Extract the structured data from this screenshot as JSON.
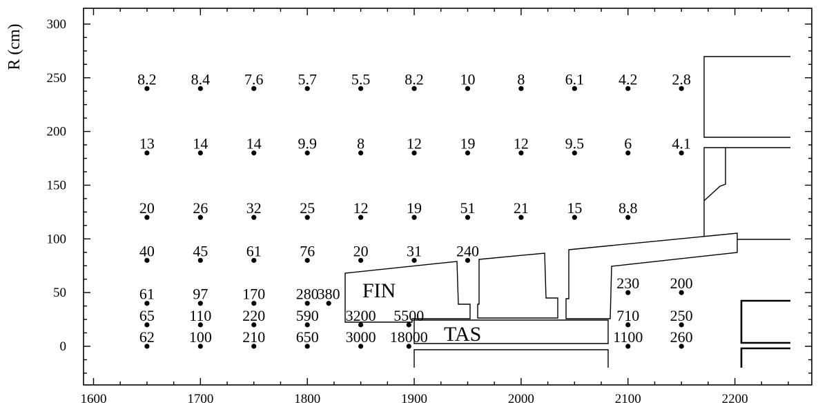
{
  "chart_data": {
    "type": "scatter",
    "title": "",
    "xlabel": "",
    "ylabel": "R (cm)",
    "xlim": [
      1590,
      2275
    ],
    "ylim": [
      -35,
      315
    ],
    "x_ticks": [
      1600,
      1700,
      1800,
      1900,
      2000,
      2100,
      2200
    ],
    "y_ticks": [
      0,
      50,
      100,
      150,
      200,
      250,
      300
    ],
    "x_tick_labels": [
      "1600",
      "1700",
      "1800",
      "1900",
      "2000",
      "2100",
      "2200"
    ],
    "y_tick_labels": [
      "0",
      "50",
      "100",
      "150",
      "200",
      "250",
      "300"
    ],
    "grid": false,
    "points": [
      {
        "x": 1650,
        "y": 240,
        "label": "8.2"
      },
      {
        "x": 1700,
        "y": 240,
        "label": "8.4"
      },
      {
        "x": 1750,
        "y": 240,
        "label": "7.6"
      },
      {
        "x": 1800,
        "y": 240,
        "label": "5.7"
      },
      {
        "x": 1850,
        "y": 240,
        "label": "5.5"
      },
      {
        "x": 1900,
        "y": 240,
        "label": "8.2"
      },
      {
        "x": 1950,
        "y": 240,
        "label": "10"
      },
      {
        "x": 2000,
        "y": 240,
        "label": "8"
      },
      {
        "x": 2050,
        "y": 240,
        "label": "6.1"
      },
      {
        "x": 2100,
        "y": 240,
        "label": "4.2"
      },
      {
        "x": 2150,
        "y": 240,
        "label": "2.8"
      },
      {
        "x": 1650,
        "y": 180,
        "label": "13"
      },
      {
        "x": 1700,
        "y": 180,
        "label": "14"
      },
      {
        "x": 1750,
        "y": 180,
        "label": "14"
      },
      {
        "x": 1800,
        "y": 180,
        "label": "9.9"
      },
      {
        "x": 1850,
        "y": 180,
        "label": "8"
      },
      {
        "x": 1900,
        "y": 180,
        "label": "12"
      },
      {
        "x": 1950,
        "y": 180,
        "label": "19"
      },
      {
        "x": 2000,
        "y": 180,
        "label": "12"
      },
      {
        "x": 2050,
        "y": 180,
        "label": "9.5"
      },
      {
        "x": 2100,
        "y": 180,
        "label": "6"
      },
      {
        "x": 2150,
        "y": 180,
        "label": "4.1"
      },
      {
        "x": 1650,
        "y": 120,
        "label": "20"
      },
      {
        "x": 1700,
        "y": 120,
        "label": "26"
      },
      {
        "x": 1750,
        "y": 120,
        "label": "32"
      },
      {
        "x": 1800,
        "y": 120,
        "label": "25"
      },
      {
        "x": 1850,
        "y": 120,
        "label": "12"
      },
      {
        "x": 1900,
        "y": 120,
        "label": "19"
      },
      {
        "x": 1950,
        "y": 120,
        "label": "51"
      },
      {
        "x": 2000,
        "y": 120,
        "label": "21"
      },
      {
        "x": 2050,
        "y": 120,
        "label": "15"
      },
      {
        "x": 2100,
        "y": 120,
        "label": "8.8"
      },
      {
        "x": 1650,
        "y": 80,
        "label": "40"
      },
      {
        "x": 1700,
        "y": 80,
        "label": "45"
      },
      {
        "x": 1750,
        "y": 80,
        "label": "61"
      },
      {
        "x": 1800,
        "y": 80,
        "label": "76"
      },
      {
        "x": 1850,
        "y": 80,
        "label": "20"
      },
      {
        "x": 1900,
        "y": 80,
        "label": "31"
      },
      {
        "x": 1950,
        "y": 80,
        "label": "240"
      },
      {
        "x": 1650,
        "y": 40,
        "label": "61"
      },
      {
        "x": 1700,
        "y": 40,
        "label": "97"
      },
      {
        "x": 1750,
        "y": 40,
        "label": "170"
      },
      {
        "x": 1800,
        "y": 40,
        "label": "280"
      },
      {
        "x": 1820,
        "y": 40,
        "label": "380"
      },
      {
        "x": 2100,
        "y": 50,
        "label": "230"
      },
      {
        "x": 2150,
        "y": 50,
        "label": "200"
      },
      {
        "x": 1650,
        "y": 20,
        "label": "65"
      },
      {
        "x": 1700,
        "y": 20,
        "label": "110"
      },
      {
        "x": 1750,
        "y": 20,
        "label": "220"
      },
      {
        "x": 1800,
        "y": 20,
        "label": "590"
      },
      {
        "x": 1850,
        "y": 20,
        "label": "3200"
      },
      {
        "x": 1895,
        "y": 20,
        "label": "5500"
      },
      {
        "x": 2100,
        "y": 20,
        "label": "710"
      },
      {
        "x": 2150,
        "y": 20,
        "label": "250"
      },
      {
        "x": 1650,
        "y": 0,
        "label": "62"
      },
      {
        "x": 1700,
        "y": 0,
        "label": "100"
      },
      {
        "x": 1750,
        "y": 0,
        "label": "210"
      },
      {
        "x": 1800,
        "y": 0,
        "label": "650"
      },
      {
        "x": 1850,
        "y": 0,
        "label": "3000"
      },
      {
        "x": 1895,
        "y": 0,
        "label": "18000"
      },
      {
        "x": 2100,
        "y": 0,
        "label": "1100"
      },
      {
        "x": 2150,
        "y": 0,
        "label": "260"
      }
    ],
    "annotations": [
      {
        "text": "FIN"
      },
      {
        "text": "TAS"
      }
    ]
  }
}
